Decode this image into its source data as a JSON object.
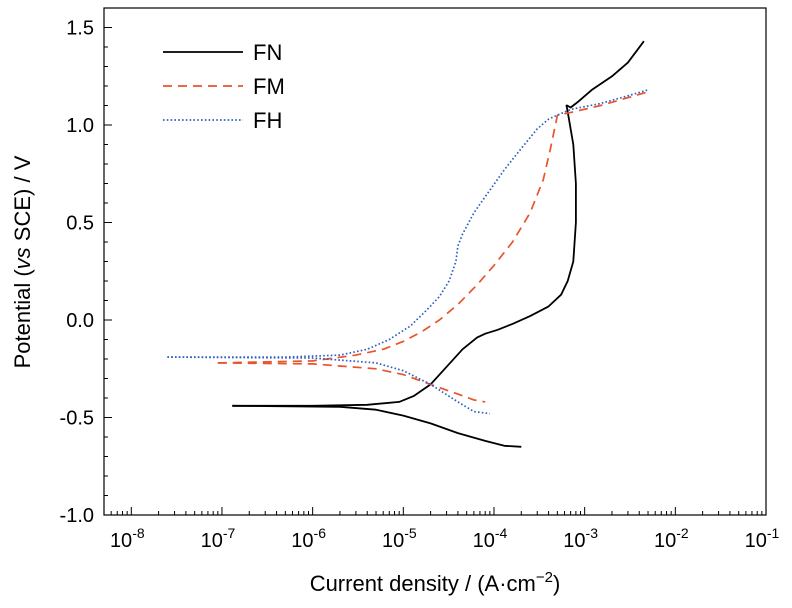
{
  "chart_data": {
    "type": "line",
    "xscale": "log",
    "xlabel_prefix": "Current density / (A·cm",
    "xlabel_exp": "−2",
    "xlabel_suffix": ")",
    "ylabel_prefix": "Potential (",
    "ylabel_italic": "vs",
    "ylabel_suffix": " SCE) / V",
    "xlim": [
      5e-09,
      0.1
    ],
    "ylim": [
      -1.0,
      1.6
    ],
    "x_ticks": [
      {
        "value": 1e-08,
        "base": "10",
        "exp": "-8"
      },
      {
        "value": 1e-07,
        "base": "10",
        "exp": "-7"
      },
      {
        "value": 1e-06,
        "base": "10",
        "exp": "-6"
      },
      {
        "value": 1e-05,
        "base": "10",
        "exp": "-5"
      },
      {
        "value": 0.0001,
        "base": "10",
        "exp": "-4"
      },
      {
        "value": 0.001,
        "base": "10",
        "exp": "-3"
      },
      {
        "value": 0.01,
        "base": "10",
        "exp": "-2"
      },
      {
        "value": 0.1,
        "base": "10",
        "exp": "-1"
      }
    ],
    "y_ticks": [
      {
        "value": 1.5,
        "label": "1.5"
      },
      {
        "value": 1.0,
        "label": "1.0"
      },
      {
        "value": 0.5,
        "label": "0.5"
      },
      {
        "value": 0.0,
        "label": "0.0"
      },
      {
        "value": -0.5,
        "label": "-0.5"
      },
      {
        "value": -1.0,
        "label": "-1.0"
      }
    ],
    "legend_position": "top-left",
    "grid": false,
    "series": [
      {
        "name": "FN",
        "color": "#000000",
        "style": "solid",
        "x": [
          1.3e-07,
          1e-06,
          4e-06,
          9e-06,
          1.3e-05,
          2e-05,
          3e-05,
          4.5e-05,
          6.5e-05,
          8e-05,
          0.00011,
          0.00016,
          0.00025,
          0.0004,
          0.00055,
          0.00065,
          0.00075,
          0.0008,
          0.0008,
          0.00075,
          0.00066,
          0.00063,
          0.00064,
          0.0007,
          0.00085,
          0.0012,
          0.002,
          0.003,
          0.0045
        ],
        "y": [
          -0.44,
          -0.44,
          -0.435,
          -0.42,
          -0.39,
          -0.33,
          -0.24,
          -0.15,
          -0.09,
          -0.07,
          -0.05,
          -0.02,
          0.02,
          0.07,
          0.13,
          0.2,
          0.3,
          0.5,
          0.7,
          0.9,
          1.05,
          1.1,
          1.1,
          1.09,
          1.12,
          1.18,
          1.25,
          1.32,
          1.43
        ]
      },
      {
        "name": "FN",
        "color": "#000000",
        "style": "solid",
        "legend": false,
        "x": [
          1.3e-07,
          2e-06,
          5e-06,
          1e-05,
          2e-05,
          4e-05,
          8e-05,
          0.00013,
          0.0002
        ],
        "y": [
          -0.44,
          -0.445,
          -0.46,
          -0.49,
          -0.53,
          -0.58,
          -0.62,
          -0.645,
          -0.65
        ]
      },
      {
        "name": "FM",
        "color": "#e8542c",
        "style": "dashed",
        "x": [
          9e-08,
          1e-06,
          3e-06,
          6e-06,
          1e-05,
          1.6e-05,
          2.5e-05,
          4e-05,
          6.5e-05,
          0.0001,
          0.00016,
          0.00025,
          0.00035,
          0.00042,
          0.0005,
          0.0008,
          0.0015,
          0.003,
          0.005
        ],
        "y": [
          -0.22,
          -0.21,
          -0.18,
          -0.15,
          -0.11,
          -0.06,
          0.0,
          0.08,
          0.18,
          0.28,
          0.4,
          0.55,
          0.72,
          0.88,
          1.05,
          1.07,
          1.1,
          1.14,
          1.17
        ]
      },
      {
        "name": "FM",
        "color": "#e8542c",
        "style": "dashed",
        "legend": false,
        "x": [
          9e-08,
          1e-06,
          5e-06,
          1e-05,
          2e-05,
          4e-05,
          6e-05,
          8e-05
        ],
        "y": [
          -0.22,
          -0.225,
          -0.25,
          -0.28,
          -0.33,
          -0.38,
          -0.41,
          -0.42
        ]
      },
      {
        "name": "FH",
        "color": "#2f5fc0",
        "style": "dotted",
        "x": [
          2.5e-08,
          5e-07,
          2e-06,
          4e-06,
          7e-06,
          1.2e-05,
          1.8e-05,
          2.5e-05,
          3.2e-05,
          3.8e-05,
          4e-05,
          4.5e-05,
          6e-05,
          8.5e-05,
          0.00013,
          0.0002,
          0.0003,
          0.0004,
          0.0007,
          0.0015,
          0.003,
          0.005
        ],
        "y": [
          -0.19,
          -0.19,
          -0.18,
          -0.15,
          -0.1,
          -0.03,
          0.05,
          0.12,
          0.2,
          0.3,
          0.38,
          0.44,
          0.55,
          0.65,
          0.77,
          0.88,
          0.98,
          1.03,
          1.08,
          1.11,
          1.15,
          1.18
        ]
      },
      {
        "name": "FH",
        "color": "#2f5fc0",
        "style": "dotted",
        "legend": false,
        "x": [
          2.5e-08,
          1e-06,
          5e-06,
          1e-05,
          2e-05,
          4e-05,
          6e-05,
          9e-05
        ],
        "y": [
          -0.19,
          -0.195,
          -0.22,
          -0.26,
          -0.33,
          -0.42,
          -0.47,
          -0.48
        ]
      }
    ]
  }
}
